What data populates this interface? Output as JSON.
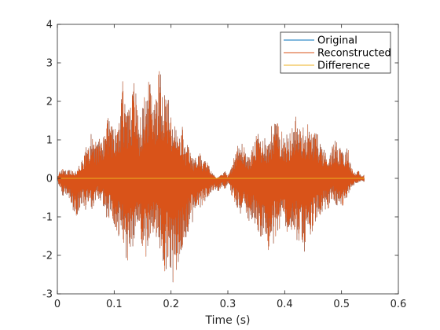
{
  "chart_data": {
    "type": "line",
    "xlabel": "Time (s)",
    "ylabel": "",
    "title": "",
    "xlim": [
      0,
      0.6
    ],
    "ylim": [
      -3,
      4
    ],
    "x_ticks": [
      0,
      0.1,
      0.2,
      0.3,
      0.4,
      0.5,
      0.6
    ],
    "x_tick_labels": [
      "0",
      "0.1",
      "0.2",
      "0.3",
      "0.4",
      "0.5",
      "0.6"
    ],
    "y_ticks": [
      -3,
      -2,
      -1,
      0,
      1,
      2,
      3,
      4
    ],
    "y_tick_labels": [
      "-3",
      "-2",
      "-1",
      "0",
      "1",
      "2",
      "3",
      "4"
    ],
    "grid": false,
    "legend_position": "top-right",
    "series": [
      {
        "name": "Original",
        "color": "#0072BD",
        "x": [
          0,
          0.005,
          0.01,
          0.015,
          0.02,
          0.025,
          0.03,
          0.035,
          0.04,
          0.045,
          0.05,
          0.055,
          0.06,
          0.065,
          0.07,
          0.075,
          0.08,
          0.085,
          0.09,
          0.095,
          0.1,
          0.105,
          0.11,
          0.115,
          0.12,
          0.125,
          0.13,
          0.135,
          0.14,
          0.145,
          0.15,
          0.155,
          0.16,
          0.165,
          0.17,
          0.175,
          0.18,
          0.185,
          0.19,
          0.195,
          0.2,
          0.205,
          0.21,
          0.215,
          0.22,
          0.225,
          0.23,
          0.235,
          0.24,
          0.245,
          0.25,
          0.255,
          0.26,
          0.265,
          0.27,
          0.275,
          0.28,
          0.285,
          0.29,
          0.295,
          0.3,
          0.305,
          0.31,
          0.315,
          0.32,
          0.325,
          0.33,
          0.335,
          0.34,
          0.345,
          0.35,
          0.355,
          0.36,
          0.365,
          0.37,
          0.375,
          0.38,
          0.385,
          0.39,
          0.395,
          0.4,
          0.405,
          0.41,
          0.415,
          0.42,
          0.425,
          0.43,
          0.435,
          0.44,
          0.445,
          0.45,
          0.455,
          0.46,
          0.465,
          0.47,
          0.475,
          0.48,
          0.485,
          0.49,
          0.495,
          0.5,
          0.505,
          0.51,
          0.515,
          0.52,
          0.525,
          0.53,
          0.535,
          0.54
        ],
        "upper": [
          0.05,
          0.2,
          0.25,
          0.2,
          0.25,
          0.2,
          0.15,
          0.25,
          0.4,
          0.5,
          0.8,
          0.9,
          1.3,
          1.1,
          0.9,
          1.2,
          1.3,
          1.5,
          1.6,
          1.4,
          1.3,
          1.6,
          1.5,
          2.6,
          1.7,
          1.8,
          2.1,
          2.6,
          2.1,
          1.5,
          1.9,
          2.3,
          2.5,
          2.6,
          2.2,
          2.7,
          2.9,
          2.7,
          2.3,
          2.2,
          1.6,
          1.5,
          1.3,
          1.1,
          1.4,
          0.8,
          0.9,
          0.6,
          0.5,
          0.6,
          0.8,
          0.4,
          0.5,
          0.4,
          0.2,
          0.1,
          0.0,
          0.05,
          0.1,
          0.2,
          0.05,
          0.3,
          0.5,
          0.9,
          0.8,
          0.95,
          0.8,
          0.5,
          0.7,
          0.9,
          1.1,
          1.3,
          1.0,
          1.2,
          0.9,
          1.3,
          1.5,
          1.6,
          1.3,
          1.4,
          1.0,
          1.2,
          1.2,
          1.5,
          1.7,
          1.3,
          1.4,
          1.3,
          1.5,
          1.2,
          1.3,
          1.2,
          1.1,
          0.9,
          0.8,
          0.5,
          0.8,
          0.9,
          1.0,
          0.9,
          1.0,
          0.6,
          0.9,
          0.5,
          0.2,
          0.15,
          0.2,
          0.05,
          0.1
        ],
        "lower": [
          -0.05,
          -0.3,
          -0.5,
          -0.4,
          -0.5,
          -0.8,
          -0.9,
          -1.0,
          -0.8,
          -0.6,
          -0.9,
          -0.6,
          -0.8,
          -0.7,
          -0.5,
          -0.6,
          -0.7,
          -1.1,
          -1.1,
          -1.0,
          -1.3,
          -1.4,
          -1.6,
          -1.6,
          -2.1,
          -2.2,
          -1.9,
          -1.7,
          -1.5,
          -1.4,
          -1.9,
          -2.2,
          -1.7,
          -1.5,
          -1.5,
          -1.7,
          -2.0,
          -2.3,
          -2.5,
          -2.2,
          -2.6,
          -2.8,
          -2.5,
          -2.0,
          -1.8,
          -1.6,
          -1.4,
          -1.1,
          -1.2,
          -0.9,
          -0.8,
          -0.7,
          -0.6,
          -0.5,
          -0.4,
          -0.3,
          -0.4,
          -0.3,
          -0.2,
          -0.3,
          -0.1,
          -0.4,
          -0.6,
          -0.8,
          -0.9,
          -1.0,
          -0.9,
          -1.1,
          -1.2,
          -1.1,
          -1.3,
          -1.5,
          -1.5,
          -1.8,
          -1.9,
          -1.6,
          -1.7,
          -1.5,
          -1.6,
          -1.3,
          -1.2,
          -1.5,
          -1.6,
          -1.8,
          -1.6,
          -1.7,
          -1.8,
          -2.1,
          -1.8,
          -1.5,
          -1.4,
          -1.1,
          -1.0,
          -0.9,
          -0.8,
          -0.9,
          -0.6,
          -0.5,
          -0.8,
          -0.7,
          -0.8,
          -0.6,
          -0.5,
          -0.3,
          -0.2,
          -0.15,
          -0.1,
          -0.05,
          -0.1
        ]
      },
      {
        "name": "Reconstructed",
        "color": "#D95319",
        "x": [
          0,
          0.005,
          0.01,
          0.015,
          0.02,
          0.025,
          0.03,
          0.035,
          0.04,
          0.045,
          0.05,
          0.055,
          0.06,
          0.065,
          0.07,
          0.075,
          0.08,
          0.085,
          0.09,
          0.095,
          0.1,
          0.105,
          0.11,
          0.115,
          0.12,
          0.125,
          0.13,
          0.135,
          0.14,
          0.145,
          0.15,
          0.155,
          0.16,
          0.165,
          0.17,
          0.175,
          0.18,
          0.185,
          0.19,
          0.195,
          0.2,
          0.205,
          0.21,
          0.215,
          0.22,
          0.225,
          0.23,
          0.235,
          0.24,
          0.245,
          0.25,
          0.255,
          0.26,
          0.265,
          0.27,
          0.275,
          0.28,
          0.285,
          0.29,
          0.295,
          0.3,
          0.305,
          0.31,
          0.315,
          0.32,
          0.325,
          0.33,
          0.335,
          0.34,
          0.345,
          0.35,
          0.355,
          0.36,
          0.365,
          0.37,
          0.375,
          0.38,
          0.385,
          0.39,
          0.395,
          0.4,
          0.405,
          0.41,
          0.415,
          0.42,
          0.425,
          0.43,
          0.435,
          0.44,
          0.445,
          0.45,
          0.455,
          0.46,
          0.465,
          0.47,
          0.475,
          0.48,
          0.485,
          0.49,
          0.495,
          0.5,
          0.505,
          0.51,
          0.515,
          0.52,
          0.525,
          0.53,
          0.535,
          0.54
        ],
        "upper": [
          0.05,
          0.2,
          0.25,
          0.2,
          0.25,
          0.2,
          0.15,
          0.25,
          0.4,
          0.5,
          0.8,
          0.9,
          1.3,
          1.1,
          0.9,
          1.2,
          1.3,
          1.5,
          1.6,
          1.4,
          1.3,
          1.6,
          1.5,
          2.6,
          1.7,
          1.8,
          2.1,
          2.6,
          2.1,
          1.5,
          1.9,
          2.3,
          2.5,
          2.6,
          2.2,
          2.7,
          2.9,
          2.7,
          2.3,
          2.2,
          1.6,
          1.5,
          1.3,
          1.1,
          1.4,
          0.8,
          0.9,
          0.6,
          0.5,
          0.6,
          0.8,
          0.4,
          0.5,
          0.4,
          0.2,
          0.1,
          0.0,
          0.05,
          0.1,
          0.2,
          0.05,
          0.3,
          0.5,
          0.9,
          0.8,
          0.95,
          0.8,
          0.5,
          0.7,
          0.9,
          1.1,
          1.3,
          1.0,
          1.2,
          0.9,
          1.3,
          1.5,
          1.6,
          1.3,
          1.4,
          1.0,
          1.2,
          1.2,
          1.5,
          1.7,
          1.3,
          1.4,
          1.3,
          1.5,
          1.2,
          1.3,
          1.2,
          1.1,
          0.9,
          0.8,
          0.5,
          0.8,
          0.9,
          1.0,
          0.9,
          1.0,
          0.6,
          0.9,
          0.5,
          0.2,
          0.15,
          0.2,
          0.05,
          0.1
        ],
        "lower": [
          -0.05,
          -0.3,
          -0.5,
          -0.4,
          -0.5,
          -0.8,
          -0.9,
          -1.0,
          -0.8,
          -0.6,
          -0.9,
          -0.6,
          -0.8,
          -0.7,
          -0.5,
          -0.6,
          -0.7,
          -1.1,
          -1.1,
          -1.0,
          -1.3,
          -1.4,
          -1.6,
          -1.6,
          -2.1,
          -2.2,
          -1.9,
          -1.7,
          -1.5,
          -1.4,
          -1.9,
          -2.2,
          -1.7,
          -1.5,
          -1.5,
          -1.7,
          -2.0,
          -2.3,
          -2.5,
          -2.2,
          -2.6,
          -2.8,
          -2.5,
          -2.0,
          -1.8,
          -1.6,
          -1.4,
          -1.1,
          -1.2,
          -0.9,
          -0.8,
          -0.7,
          -0.6,
          -0.5,
          -0.4,
          -0.3,
          -0.4,
          -0.3,
          -0.2,
          -0.3,
          -0.1,
          -0.4,
          -0.6,
          -0.8,
          -0.9,
          -1.0,
          -0.9,
          -1.1,
          -1.2,
          -1.1,
          -1.3,
          -1.5,
          -1.5,
          -1.8,
          -1.9,
          -1.6,
          -1.7,
          -1.5,
          -1.6,
          -1.3,
          -1.2,
          -1.5,
          -1.6,
          -1.8,
          -1.6,
          -1.7,
          -1.8,
          -2.1,
          -1.8,
          -1.5,
          -1.4,
          -1.1,
          -1.0,
          -0.9,
          -0.8,
          -0.9,
          -0.6,
          -0.5,
          -0.8,
          -0.7,
          -0.8,
          -0.6,
          -0.5,
          -0.3,
          -0.2,
          -0.15,
          -0.1,
          -0.05,
          -0.1
        ]
      },
      {
        "name": "Difference",
        "color": "#EDB120",
        "x": [
          0,
          0.54
        ],
        "y": [
          0,
          0
        ]
      }
    ]
  }
}
